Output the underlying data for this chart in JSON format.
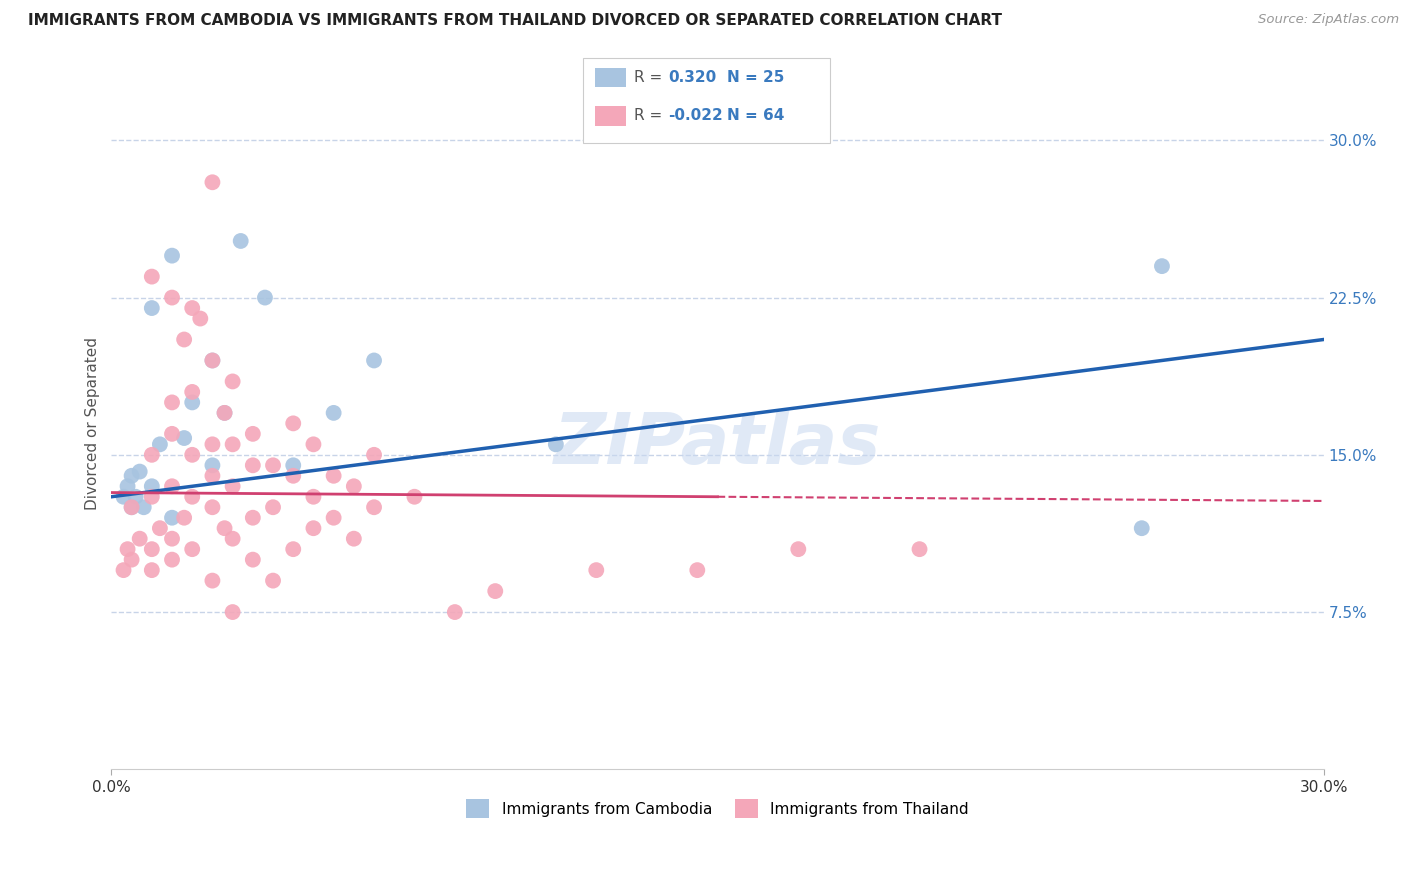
{
  "title": "IMMIGRANTS FROM CAMBODIA VS IMMIGRANTS FROM THAILAND DIVORCED OR SEPARATED CORRELATION CHART",
  "source": "Source: ZipAtlas.com",
  "ylabel": "Divorced or Separated",
  "yticks": [
    7.5,
    15.0,
    22.5,
    30.0
  ],
  "xlim": [
    0.0,
    30.0
  ],
  "ylim": [
    0.0,
    33.0
  ],
  "legend1_label": "Immigrants from Cambodia",
  "legend2_label": "Immigrants from Thailand",
  "r1": 0.32,
  "n1": 25,
  "r2": -0.022,
  "n2": 64,
  "blue_color": "#a8c4e0",
  "pink_color": "#f4a7b9",
  "line_blue": "#2060b0",
  "line_pink": "#d04070",
  "watermark": "ZIPatlas",
  "background_color": "#ffffff",
  "grid_color": "#c8d4e8",
  "blue_line_start_x": 0.0,
  "blue_line_start_y": 13.0,
  "blue_line_end_x": 30.0,
  "blue_line_end_y": 20.5,
  "pink_line_start_x": 0.0,
  "pink_line_start_y": 13.2,
  "pink_line_solid_end_x": 15.0,
  "pink_line_solid_end_y": 13.0,
  "pink_line_dash_end_x": 30.0,
  "pink_line_dash_end_y": 12.8,
  "scatter_blue": [
    [
      1.5,
      24.5
    ],
    [
      3.2,
      25.2
    ],
    [
      1.0,
      22.0
    ],
    [
      3.8,
      22.5
    ],
    [
      2.5,
      19.5
    ],
    [
      6.5,
      19.5
    ],
    [
      2.0,
      17.5
    ],
    [
      2.8,
      17.0
    ],
    [
      5.5,
      17.0
    ],
    [
      11.0,
      15.5
    ],
    [
      1.2,
      15.5
    ],
    [
      1.8,
      15.8
    ],
    [
      2.5,
      14.5
    ],
    [
      4.5,
      14.5
    ],
    [
      0.5,
      14.0
    ],
    [
      0.7,
      14.2
    ],
    [
      0.4,
      13.5
    ],
    [
      1.0,
      13.5
    ],
    [
      0.3,
      13.0
    ],
    [
      0.6,
      13.0
    ],
    [
      0.5,
      12.5
    ],
    [
      0.8,
      12.5
    ],
    [
      1.5,
      12.0
    ],
    [
      26.0,
      24.0
    ],
    [
      25.5,
      11.5
    ]
  ],
  "scatter_pink": [
    [
      2.5,
      28.0
    ],
    [
      1.0,
      23.5
    ],
    [
      1.5,
      22.5
    ],
    [
      2.0,
      22.0
    ],
    [
      2.2,
      21.5
    ],
    [
      1.8,
      20.5
    ],
    [
      2.5,
      19.5
    ],
    [
      2.0,
      18.0
    ],
    [
      3.0,
      18.5
    ],
    [
      1.5,
      17.5
    ],
    [
      2.8,
      17.0
    ],
    [
      3.5,
      16.0
    ],
    [
      4.5,
      16.5
    ],
    [
      1.5,
      16.0
    ],
    [
      2.5,
      15.5
    ],
    [
      3.0,
      15.5
    ],
    [
      5.0,
      15.5
    ],
    [
      1.0,
      15.0
    ],
    [
      2.0,
      15.0
    ],
    [
      4.0,
      14.5
    ],
    [
      6.5,
      15.0
    ],
    [
      3.5,
      14.5
    ],
    [
      5.5,
      14.0
    ],
    [
      2.5,
      14.0
    ],
    [
      4.5,
      14.0
    ],
    [
      1.5,
      13.5
    ],
    [
      3.0,
      13.5
    ],
    [
      6.0,
      13.5
    ],
    [
      2.0,
      13.0
    ],
    [
      5.0,
      13.0
    ],
    [
      7.5,
      13.0
    ],
    [
      1.0,
      13.0
    ],
    [
      2.5,
      12.5
    ],
    [
      4.0,
      12.5
    ],
    [
      6.5,
      12.5
    ],
    [
      0.5,
      12.5
    ],
    [
      1.8,
      12.0
    ],
    [
      3.5,
      12.0
    ],
    [
      5.5,
      12.0
    ],
    [
      1.2,
      11.5
    ],
    [
      2.8,
      11.5
    ],
    [
      5.0,
      11.5
    ],
    [
      0.7,
      11.0
    ],
    [
      1.5,
      11.0
    ],
    [
      3.0,
      11.0
    ],
    [
      6.0,
      11.0
    ],
    [
      0.4,
      10.5
    ],
    [
      1.0,
      10.5
    ],
    [
      2.0,
      10.5
    ],
    [
      4.5,
      10.5
    ],
    [
      0.5,
      10.0
    ],
    [
      1.5,
      10.0
    ],
    [
      3.5,
      10.0
    ],
    [
      0.3,
      9.5
    ],
    [
      1.0,
      9.5
    ],
    [
      2.5,
      9.0
    ],
    [
      4.0,
      9.0
    ],
    [
      17.0,
      10.5
    ],
    [
      20.0,
      10.5
    ],
    [
      12.0,
      9.5
    ],
    [
      14.5,
      9.5
    ],
    [
      9.5,
      8.5
    ],
    [
      8.5,
      7.5
    ],
    [
      3.0,
      7.5
    ]
  ]
}
